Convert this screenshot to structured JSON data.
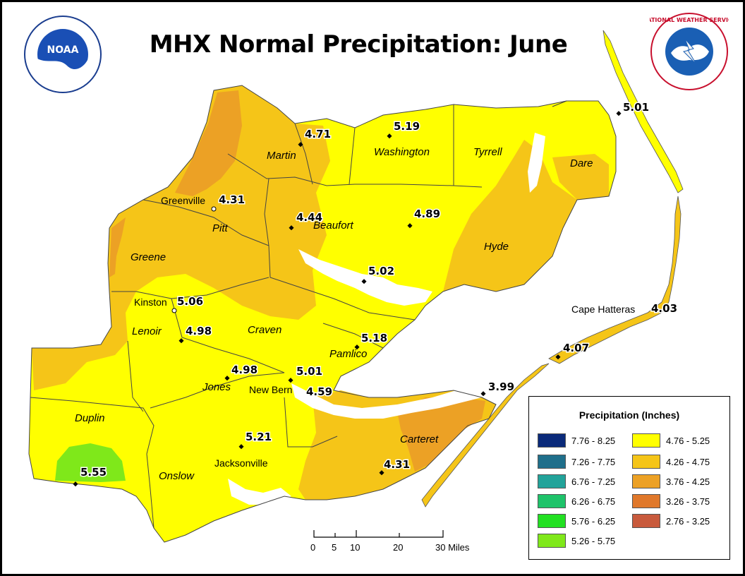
{
  "title": "MHX Normal Precipitation: June",
  "colors": {
    "yellow": "#ffff00",
    "light_orange": "#f5c518",
    "orange": "#eca125",
    "coast_blue": "#ffffff"
  },
  "counties": [
    {
      "name": "Martin"
    },
    {
      "name": "Washington"
    },
    {
      "name": "Tyrrell"
    },
    {
      "name": "Dare"
    },
    {
      "name": "Pitt"
    },
    {
      "name": "Beaufort"
    },
    {
      "name": "Hyde"
    },
    {
      "name": "Greene"
    },
    {
      "name": "Lenoir"
    },
    {
      "name": "Craven"
    },
    {
      "name": "Pamlico"
    },
    {
      "name": "Jones"
    },
    {
      "name": "Duplin"
    },
    {
      "name": "Onslow"
    },
    {
      "name": "Carteret"
    }
  ],
  "cities": [
    {
      "name": "Greenville"
    },
    {
      "name": "Kinston"
    },
    {
      "name": "New Bern"
    },
    {
      "name": "Jacksonville"
    },
    {
      "name": "Cape Hatteras"
    }
  ],
  "stations": [
    {
      "value": "4.71"
    },
    {
      "value": "5.19"
    },
    {
      "value": "5.01"
    },
    {
      "value": "4.31"
    },
    {
      "value": "4.44"
    },
    {
      "value": "4.89"
    },
    {
      "value": "5.02"
    },
    {
      "value": "5.06"
    },
    {
      "value": "4.98"
    },
    {
      "value": "5.18"
    },
    {
      "value": "4.98"
    },
    {
      "value": "5.01"
    },
    {
      "value": "4.59"
    },
    {
      "value": "3.99"
    },
    {
      "value": "5.21"
    },
    {
      "value": "4.31"
    },
    {
      "value": "5.55"
    },
    {
      "value": "4.03"
    },
    {
      "value": "4.07"
    }
  ],
  "scale_bar": {
    "ticks": [
      "0",
      "5",
      "10",
      "20",
      "30 Miles"
    ]
  },
  "legend": {
    "title": "Precipitation (Inches)",
    "items": [
      {
        "label": "7.76 - 8.25",
        "color": "#0a2a7a"
      },
      {
        "label": "7.26 - 7.75",
        "color": "#1f6f8b"
      },
      {
        "label": "6.76 - 7.25",
        "color": "#22a39a"
      },
      {
        "label": "6.26 - 6.75",
        "color": "#1ec36a"
      },
      {
        "label": "5.76 - 6.25",
        "color": "#22e022"
      },
      {
        "label": "5.26 - 5.75",
        "color": "#7fe81a"
      },
      {
        "label": "4.76 - 5.25",
        "color": "#ffff00"
      },
      {
        "label": "4.26 - 4.75",
        "color": "#f5c518"
      },
      {
        "label": "3.76 - 4.25",
        "color": "#eca125"
      },
      {
        "label": "3.26 - 3.75",
        "color": "#e0782a"
      },
      {
        "label": "2.76 - 3.25",
        "color": "#c85a3c"
      }
    ]
  },
  "logos": {
    "noaa": "NOAA",
    "nws": "NATIONAL WEATHER SERVICE"
  }
}
